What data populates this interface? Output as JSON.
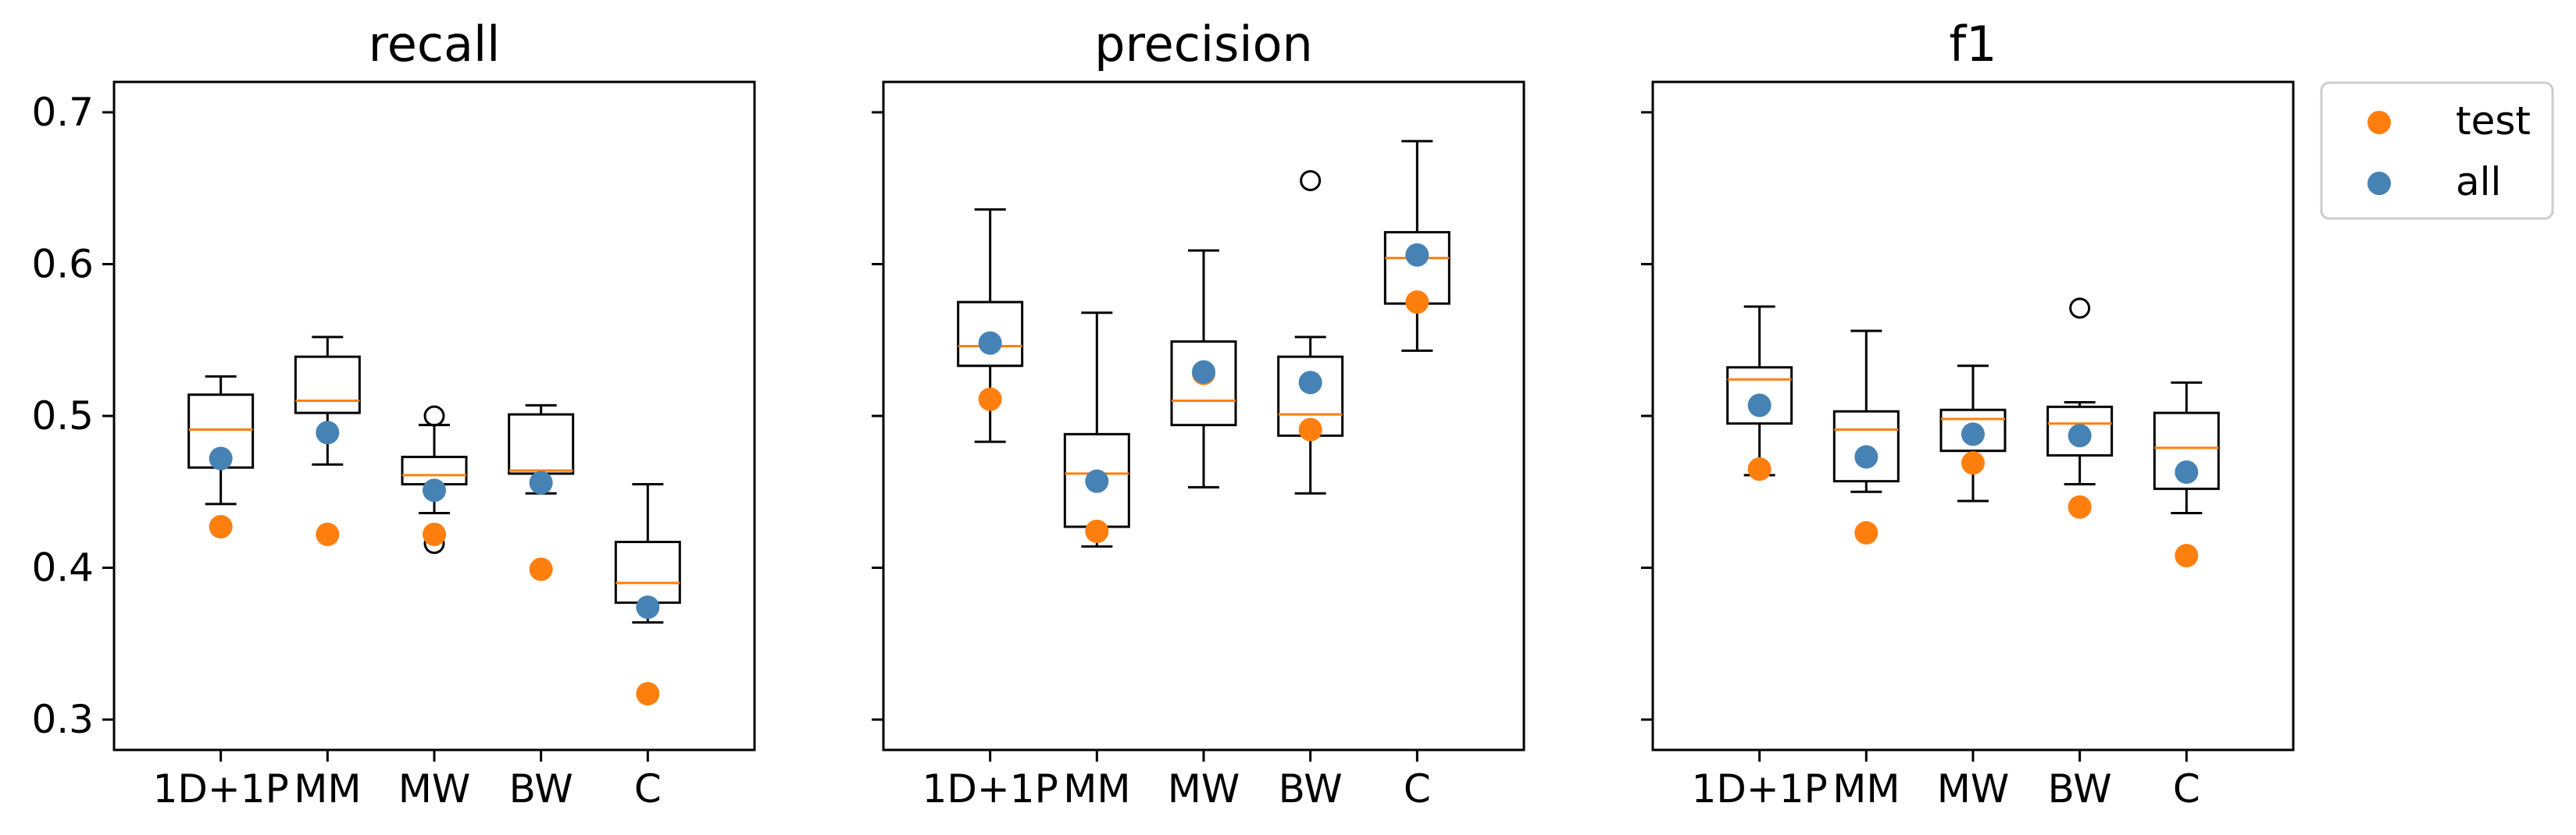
{
  "colors": {
    "test": "#ff7f0e",
    "all": "#4682b4",
    "median": "#ff7f0e",
    "box": "#000000"
  },
  "chart_data": [
    {
      "type": "box",
      "title": "recall",
      "categories": [
        "1D+1P",
        "MM",
        "MW",
        "BW",
        "C"
      ],
      "ylim": [
        0.28,
        0.72
      ],
      "yticks": [
        "0.3",
        "0.4",
        "0.5",
        "0.6",
        "0.7"
      ],
      "boxes": [
        {
          "q1": 0.466,
          "median": 0.491,
          "q3": 0.514,
          "whisker_low": 0.442,
          "whisker_high": 0.526,
          "outliers": []
        },
        {
          "q1": 0.502,
          "median": 0.51,
          "q3": 0.539,
          "whisker_low": 0.468,
          "whisker_high": 0.552,
          "outliers": []
        },
        {
          "q1": 0.455,
          "median": 0.461,
          "q3": 0.473,
          "whisker_low": 0.436,
          "whisker_high": 0.494,
          "outliers": [
            0.416,
            0.5
          ]
        },
        {
          "q1": 0.462,
          "median": 0.464,
          "q3": 0.501,
          "whisker_low": 0.449,
          "whisker_high": 0.507,
          "outliers": []
        },
        {
          "q1": 0.377,
          "median": 0.39,
          "q3": 0.417,
          "whisker_low": 0.364,
          "whisker_high": 0.455,
          "outliers": []
        }
      ],
      "series": [
        {
          "name": "test",
          "values": [
            0.427,
            0.422,
            0.422,
            0.399,
            0.317
          ]
        },
        {
          "name": "all",
          "values": [
            0.472,
            0.489,
            0.451,
            0.456,
            0.374
          ]
        }
      ]
    },
    {
      "type": "box",
      "title": "precision",
      "categories": [
        "1D+1P",
        "MM",
        "MW",
        "BW",
        "C"
      ],
      "ylim": [
        0.28,
        0.72
      ],
      "yticks": [],
      "boxes": [
        {
          "q1": 0.533,
          "median": 0.546,
          "q3": 0.575,
          "whisker_low": 0.483,
          "whisker_high": 0.636,
          "outliers": []
        },
        {
          "q1": 0.427,
          "median": 0.462,
          "q3": 0.488,
          "whisker_low": 0.414,
          "whisker_high": 0.568,
          "outliers": []
        },
        {
          "q1": 0.494,
          "median": 0.51,
          "q3": 0.549,
          "whisker_low": 0.453,
          "whisker_high": 0.609,
          "outliers": []
        },
        {
          "q1": 0.487,
          "median": 0.501,
          "q3": 0.539,
          "whisker_low": 0.449,
          "whisker_high": 0.552,
          "outliers": [
            0.655
          ]
        },
        {
          "q1": 0.574,
          "median": 0.604,
          "q3": 0.621,
          "whisker_low": 0.543,
          "whisker_high": 0.681,
          "outliers": []
        }
      ],
      "series": [
        {
          "name": "test",
          "values": [
            0.511,
            0.424,
            0.528,
            0.491,
            0.575
          ]
        },
        {
          "name": "all",
          "values": [
            0.548,
            0.457,
            0.529,
            0.522,
            0.606
          ]
        }
      ]
    },
    {
      "type": "box",
      "title": "f1",
      "categories": [
        "1D+1P",
        "MM",
        "MW",
        "BW",
        "C"
      ],
      "ylim": [
        0.28,
        0.72
      ],
      "yticks": [],
      "boxes": [
        {
          "q1": 0.495,
          "median": 0.524,
          "q3": 0.532,
          "whisker_low": 0.461,
          "whisker_high": 0.572,
          "outliers": []
        },
        {
          "q1": 0.457,
          "median": 0.491,
          "q3": 0.503,
          "whisker_low": 0.45,
          "whisker_high": 0.556,
          "outliers": []
        },
        {
          "q1": 0.477,
          "median": 0.498,
          "q3": 0.504,
          "whisker_low": 0.444,
          "whisker_high": 0.533,
          "outliers": []
        },
        {
          "q1": 0.474,
          "median": 0.495,
          "q3": 0.506,
          "whisker_low": 0.455,
          "whisker_high": 0.509,
          "outliers": [
            0.571
          ]
        },
        {
          "q1": 0.452,
          "median": 0.479,
          "q3": 0.502,
          "whisker_low": 0.436,
          "whisker_high": 0.522,
          "outliers": []
        }
      ],
      "series": [
        {
          "name": "test",
          "values": [
            0.465,
            0.423,
            0.469,
            0.44,
            0.408
          ]
        },
        {
          "name": "all",
          "values": [
            0.507,
            0.473,
            0.488,
            0.487,
            0.463
          ]
        }
      ]
    }
  ],
  "legend": {
    "position": "upper-right-outside",
    "items": [
      {
        "label": "test"
      },
      {
        "label": "all"
      }
    ]
  }
}
